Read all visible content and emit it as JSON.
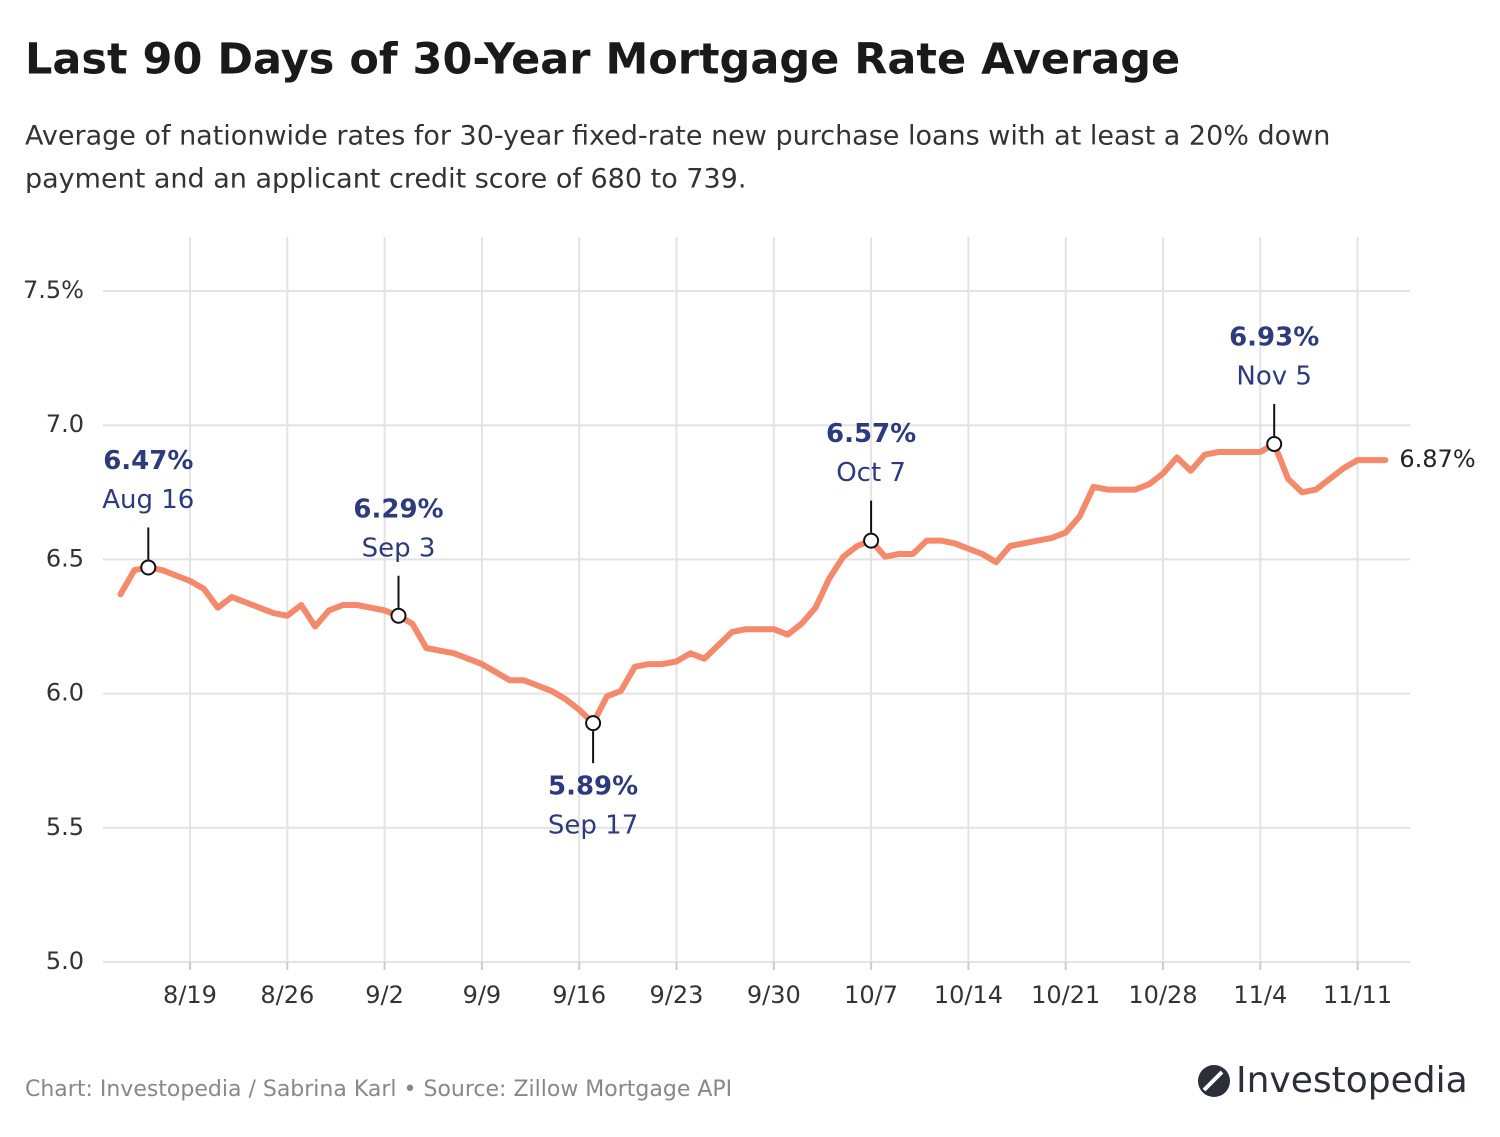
{
  "chart_data": {
    "type": "line",
    "title": "Last 90 Days of 30-Year Mortgage Rate Average",
    "subtitle": [
      "Average of nationwide rates for 30-year fixed-rate new purchase loans with at least a 20% down",
      "payment and an applicant credit score of 680 to 739."
    ],
    "x": [
      "8/14",
      "8/15",
      "8/16",
      "8/17",
      "8/18",
      "8/19",
      "8/20",
      "8/21",
      "8/22",
      "8/23",
      "8/24",
      "8/25",
      "8/26",
      "8/27",
      "8/28",
      "8/29",
      "8/30",
      "8/31",
      "9/1",
      "9/2",
      "9/3",
      "9/4",
      "9/5",
      "9/6",
      "9/7",
      "9/8",
      "9/9",
      "9/10",
      "9/11",
      "9/12",
      "9/13",
      "9/14",
      "9/15",
      "9/16",
      "9/17",
      "9/18",
      "9/19",
      "9/20",
      "9/21",
      "9/22",
      "9/23",
      "9/24",
      "9/25",
      "9/26",
      "9/27",
      "9/28",
      "9/29",
      "9/30",
      "10/1",
      "10/2",
      "10/3",
      "10/4",
      "10/5",
      "10/6",
      "10/7",
      "10/8",
      "10/9",
      "10/10",
      "10/11",
      "10/12",
      "10/13",
      "10/14",
      "10/15",
      "10/16",
      "10/17",
      "10/18",
      "10/19",
      "10/20",
      "10/21",
      "10/22",
      "10/23",
      "10/24",
      "10/25",
      "10/26",
      "10/27",
      "10/28",
      "10/29",
      "10/30",
      "10/31",
      "11/1",
      "11/2",
      "11/3",
      "11/4",
      "11/5",
      "11/6",
      "11/7",
      "11/8",
      "11/9",
      "11/10",
      "11/11",
      "11/12",
      "11/13"
    ],
    "values": [
      6.37,
      6.46,
      6.47,
      6.46,
      6.44,
      6.42,
      6.39,
      6.32,
      6.36,
      6.34,
      6.32,
      6.3,
      6.29,
      6.33,
      6.25,
      6.31,
      6.33,
      6.33,
      6.32,
      6.31,
      6.29,
      6.26,
      6.17,
      6.16,
      6.15,
      6.13,
      6.11,
      6.08,
      6.05,
      6.05,
      6.03,
      6.01,
      5.98,
      5.94,
      5.89,
      5.99,
      6.01,
      6.1,
      6.11,
      6.11,
      6.12,
      6.15,
      6.13,
      6.18,
      6.23,
      6.24,
      6.24,
      6.24,
      6.22,
      6.26,
      6.32,
      6.43,
      6.51,
      6.55,
      6.57,
      6.51,
      6.52,
      6.52,
      6.57,
      6.57,
      6.56,
      6.54,
      6.52,
      6.49,
      6.55,
      6.56,
      6.57,
      6.58,
      6.6,
      6.66,
      6.77,
      6.76,
      6.76,
      6.76,
      6.78,
      6.82,
      6.88,
      6.83,
      6.89,
      6.9,
      6.9,
      6.9,
      6.9,
      6.93,
      6.8,
      6.75,
      6.76,
      6.8,
      6.84,
      6.87,
      6.87,
      6.87
    ],
    "color": "#f4896b",
    "ylim": [
      5.0,
      7.7
    ],
    "yticks": [
      {
        "value": 5.0,
        "label": "5.0"
      },
      5.5,
      {
        "value": 6.0,
        "label": "6.0"
      },
      6.5,
      {
        "value": 7.0,
        "label": "7.0"
      },
      {
        "value": 7.5,
        "label": "7.5%"
      }
    ],
    "xticks": [
      "8/19",
      "8/26",
      "9/2",
      "9/9",
      "9/16",
      "9/23",
      "9/30",
      "10/7",
      "10/14",
      "10/21",
      "10/28",
      "11/4",
      "11/11"
    ],
    "grid": true,
    "annotations": [
      {
        "x": "8/16",
        "value": 6.47,
        "value_label": "6.47%",
        "label": "Aug 16"
      },
      {
        "x": "9/3",
        "value": 6.29,
        "value_label": "6.29%",
        "label": "Sep 3"
      },
      {
        "x": "9/17",
        "value": 5.89,
        "value_label": "5.89%",
        "label": "Sep 17"
      },
      {
        "x": "10/7",
        "value": 6.57,
        "value_label": "6.57%",
        "label": "Oct 7"
      },
      {
        "x": "11/5",
        "value": 6.93,
        "value_label": "6.93%",
        "label": "Nov 5"
      }
    ],
    "end_label": {
      "value": 6.87,
      "label": "6.87%"
    },
    "source": "Chart: Investopedia / Sabrina Karl • Source: Zillow Mortgage API",
    "logo": "Investopedia"
  }
}
